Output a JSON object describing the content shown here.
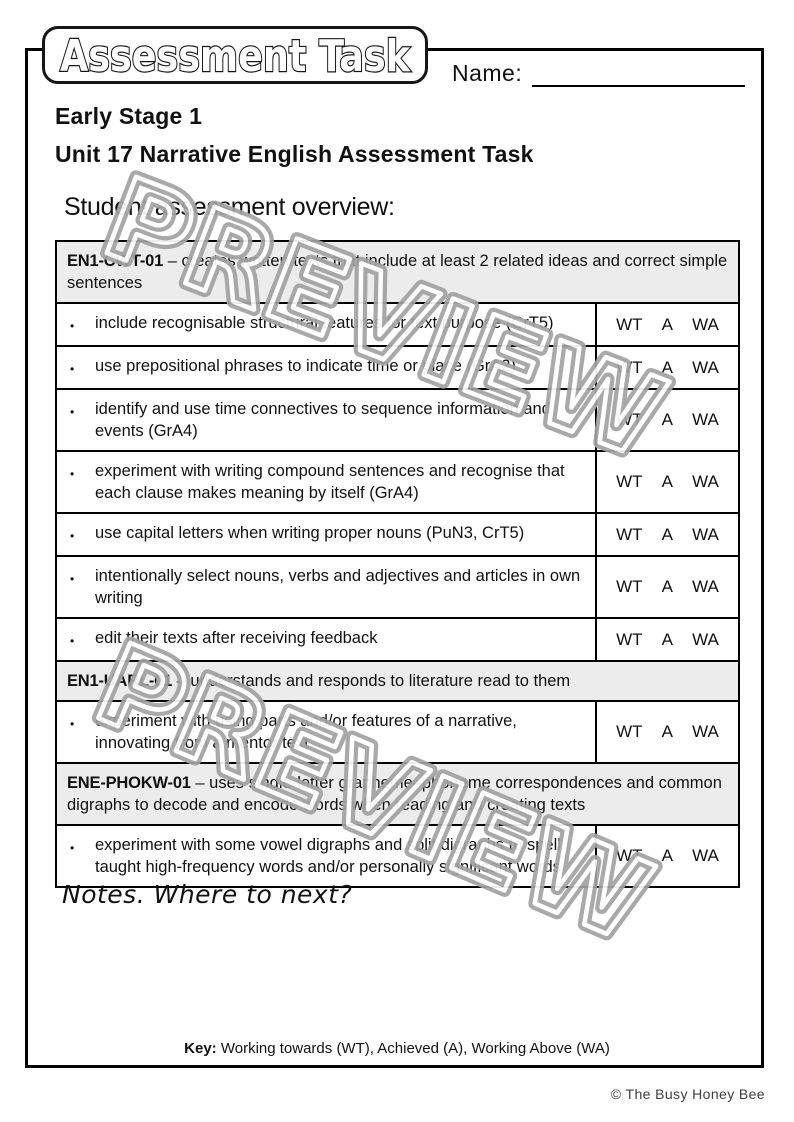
{
  "page": {
    "badge_title": "Assessment Task",
    "name_label": "Name:",
    "stage_heading": "Early Stage 1",
    "unit_heading": "Unit 17 Narrative English Assessment Task",
    "overview_heading": "Student assessment overview:",
    "notes_heading": "Notes. Where to next?",
    "key_label": "Key:",
    "key_text": "Working towards (WT), Achieved (A), Working Above (WA)",
    "copyright": "© The Busy Honey Bee",
    "watermark_text": "PREVIEW"
  },
  "table": {
    "marks": [
      "WT",
      "A",
      "WA"
    ],
    "sections": [
      {
        "code": "EN1-CWT-01",
        "desc": "– creates written texts that include at least 2 related ideas and correct simple sentences",
        "criteria": [
          "include recognisable structural features for text purpose (CrT5)",
          "use prepositional phrases to indicate time or place (GrA2)",
          "identify and use time connectives to sequence information and events (GrA4)",
          "experiment with writing compound sentences and recognise that each clause makes meaning by itself (GrA4)",
          "use capital letters when writing proper nouns (PuN3, CrT5)",
          "intentionally select nouns, verbs and adjectives and articles in own writing",
          "edit their texts after receiving feedback"
        ]
      },
      {
        "code": "EN1-UARL-01",
        "desc": "– understands and responds to literature read to them",
        "criteria": [
          "experiment with using parts and/or features of a narrative, innovating from a mentor text"
        ]
      },
      {
        "code": "ENE-PHOKW-01",
        "desc": "– uses single-letter grapheme–phoneme correspondences and common digraphs to decode and encode words when reading and creating texts",
        "criteria": [
          "experiment with some vowel digraphs and split digraphs to spell taught high-frequency words and/or personally significant words"
        ]
      }
    ]
  },
  "colors": {
    "header_row_bg": "#ececec",
    "table_border": "#000000",
    "watermark_gray": "#a2a2a2"
  }
}
